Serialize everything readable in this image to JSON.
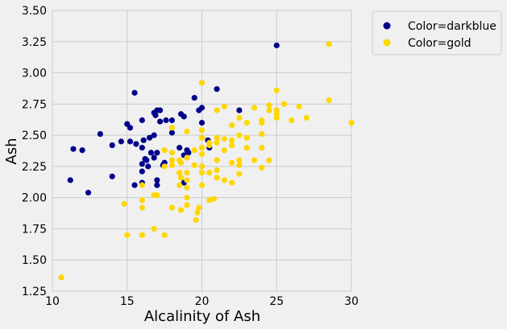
{
  "chart_data": {
    "type": "scatter",
    "xlabel": "Alcalinity of Ash",
    "ylabel": "Ash",
    "xlim": [
      10,
      30
    ],
    "ylim": [
      1.25,
      3.5
    ],
    "xticks": [
      "10",
      "15",
      "20",
      "25",
      "30"
    ],
    "yticks": [
      "1.25",
      "1.50",
      "1.75",
      "2.00",
      "2.25",
      "2.50",
      "2.75",
      "3.00",
      "3.25",
      "3.50"
    ],
    "grid": true,
    "legend_position": "outside-top-right",
    "series": [
      {
        "name": "Color=darkblue",
        "color": "#00008b",
        "points": [
          [
            25.0,
            3.22
          ],
          [
            21.0,
            2.87
          ],
          [
            19.5,
            2.8
          ],
          [
            15.5,
            2.84
          ],
          [
            17.0,
            2.7
          ],
          [
            17.2,
            2.7
          ],
          [
            16.8,
            2.68
          ],
          [
            16.9,
            2.66
          ],
          [
            18.6,
            2.67
          ],
          [
            18.8,
            2.65
          ],
          [
            19.8,
            2.7
          ],
          [
            20.0,
            2.72
          ],
          [
            22.5,
            2.7
          ],
          [
            18.0,
            2.62
          ],
          [
            17.2,
            2.61
          ],
          [
            17.6,
            2.62
          ],
          [
            16.0,
            2.62
          ],
          [
            20.0,
            2.6
          ],
          [
            15.0,
            2.59
          ],
          [
            15.2,
            2.56
          ],
          [
            18.0,
            2.52
          ],
          [
            16.8,
            2.5
          ],
          [
            16.5,
            2.48
          ],
          [
            16.1,
            2.46
          ],
          [
            14.6,
            2.45
          ],
          [
            15.2,
            2.45
          ],
          [
            15.6,
            2.43
          ],
          [
            16.0,
            2.4
          ],
          [
            18.5,
            2.4
          ],
          [
            13.2,
            2.51
          ],
          [
            14.0,
            2.42
          ],
          [
            20.4,
            2.46
          ],
          [
            20.5,
            2.4
          ],
          [
            11.4,
            2.39
          ],
          [
            12.0,
            2.38
          ],
          [
            16.6,
            2.36
          ],
          [
            17.0,
            2.36
          ],
          [
            19.0,
            2.38
          ],
          [
            18.8,
            2.34
          ],
          [
            16.8,
            2.32
          ],
          [
            16.3,
            2.3
          ],
          [
            16.0,
            2.27
          ],
          [
            17.5,
            2.28
          ],
          [
            16.4,
            2.25
          ],
          [
            16.0,
            2.21
          ],
          [
            14.0,
            2.17
          ],
          [
            11.2,
            2.14
          ],
          [
            16.0,
            2.12
          ],
          [
            17.0,
            2.14
          ],
          [
            17.0,
            2.1
          ],
          [
            15.5,
            2.1
          ],
          [
            18.8,
            2.12
          ],
          [
            12.4,
            2.04
          ],
          [
            16.2,
            2.31
          ],
          [
            17.4,
            2.26
          ],
          [
            19.1,
            2.36
          ]
        ]
      },
      {
        "name": "Color=gold",
        "color": "#ffd700",
        "points": [
          [
            28.5,
            3.23
          ],
          [
            20.0,
            2.92
          ],
          [
            25.0,
            2.86
          ],
          [
            28.5,
            2.78
          ],
          [
            25.5,
            2.75
          ],
          [
            24.5,
            2.74
          ],
          [
            26.5,
            2.73
          ],
          [
            21.5,
            2.73
          ],
          [
            23.5,
            2.72
          ],
          [
            25.0,
            2.7
          ],
          [
            21.0,
            2.7
          ],
          [
            24.5,
            2.7
          ],
          [
            25.0,
            2.67
          ],
          [
            22.5,
            2.64
          ],
          [
            25.0,
            2.64
          ],
          [
            27.0,
            2.64
          ],
          [
            26.0,
            2.62
          ],
          [
            24.0,
            2.62
          ],
          [
            24.0,
            2.6
          ],
          [
            23.0,
            2.6
          ],
          [
            30.0,
            2.6
          ],
          [
            22.0,
            2.58
          ],
          [
            18.0,
            2.56
          ],
          [
            20.0,
            2.54
          ],
          [
            19.0,
            2.53
          ],
          [
            24.0,
            2.51
          ],
          [
            22.5,
            2.5
          ],
          [
            21.0,
            2.48
          ],
          [
            20.0,
            2.48
          ],
          [
            21.5,
            2.47
          ],
          [
            22.0,
            2.46
          ],
          [
            23.0,
            2.48
          ],
          [
            21.0,
            2.44
          ],
          [
            20.5,
            2.44
          ],
          [
            22.0,
            2.42
          ],
          [
            24.0,
            2.4
          ],
          [
            20.0,
            2.4
          ],
          [
            23.0,
            2.4
          ],
          [
            21.5,
            2.38
          ],
          [
            19.5,
            2.38
          ],
          [
            17.5,
            2.38
          ],
          [
            20.0,
            2.35
          ],
          [
            18.0,
            2.36
          ],
          [
            19.0,
            2.32
          ],
          [
            18.5,
            2.3
          ],
          [
            22.5,
            2.3
          ],
          [
            21.0,
            2.3
          ],
          [
            23.5,
            2.3
          ],
          [
            24.5,
            2.3
          ],
          [
            22.0,
            2.28
          ],
          [
            22.5,
            2.26
          ],
          [
            18.0,
            2.26
          ],
          [
            17.5,
            2.25
          ],
          [
            20.0,
            2.25
          ],
          [
            24.0,
            2.24
          ],
          [
            21.0,
            2.22
          ],
          [
            20.0,
            2.2
          ],
          [
            18.5,
            2.2
          ],
          [
            19.0,
            2.2
          ],
          [
            20.5,
            2.2
          ],
          [
            22.5,
            2.19
          ],
          [
            18.6,
            2.16
          ],
          [
            21.0,
            2.16
          ],
          [
            19.0,
            2.14
          ],
          [
            21.5,
            2.14
          ],
          [
            22.0,
            2.12
          ],
          [
            18.5,
            2.1
          ],
          [
            16.0,
            2.1
          ],
          [
            19.0,
            2.08
          ],
          [
            20.0,
            2.1
          ],
          [
            17.0,
            2.02
          ],
          [
            16.8,
            2.02
          ],
          [
            19.0,
            2.0
          ],
          [
            20.8,
            1.99
          ],
          [
            20.5,
            1.98
          ],
          [
            16.0,
            1.98
          ],
          [
            14.8,
            1.95
          ],
          [
            19.0,
            1.94
          ],
          [
            19.8,
            1.92
          ],
          [
            16.0,
            1.92
          ],
          [
            18.0,
            1.92
          ],
          [
            18.6,
            1.9
          ],
          [
            19.7,
            1.88
          ],
          [
            19.6,
            1.82
          ],
          [
            16.8,
            1.75
          ],
          [
            15.0,
            1.7
          ],
          [
            16.0,
            1.7
          ],
          [
            17.5,
            1.7
          ],
          [
            10.6,
            1.36
          ],
          [
            18.6,
            2.28
          ],
          [
            19.5,
            2.26
          ],
          [
            20.5,
            2.42
          ],
          [
            18.0,
            2.3
          ]
        ]
      }
    ]
  }
}
